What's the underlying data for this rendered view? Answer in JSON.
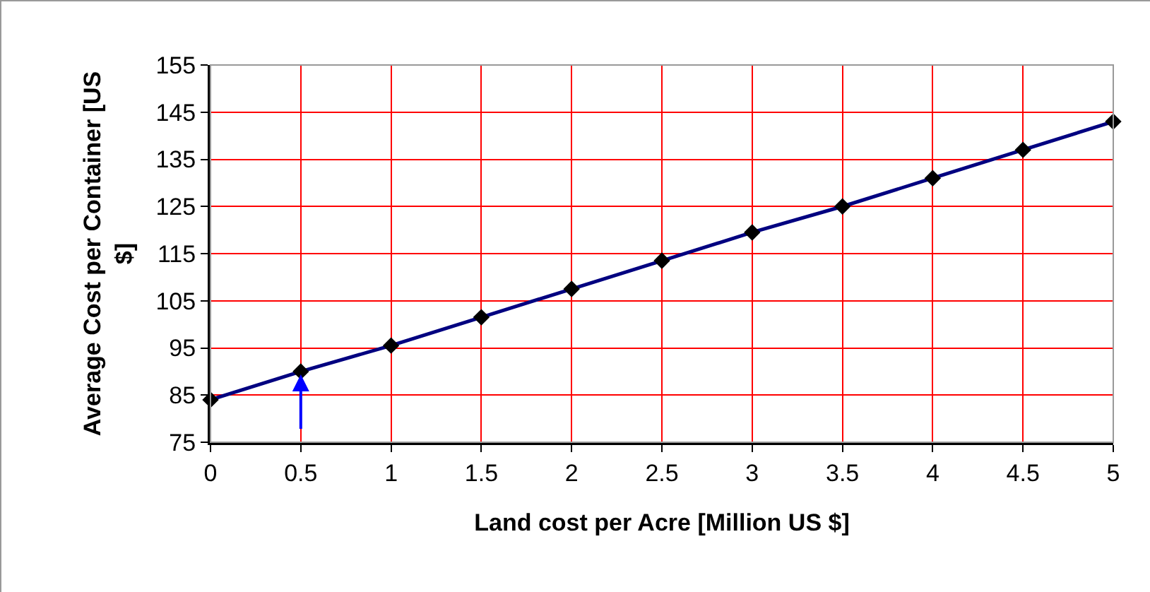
{
  "chart_data": {
    "type": "line",
    "xlabel": "Land cost per Acre [Million US $]",
    "ylabel": "Average Cost per Container [US $]",
    "x": [
      0,
      0.5,
      1,
      1.5,
      2,
      2.5,
      3,
      3.5,
      4,
      4.5,
      5
    ],
    "series": [
      {
        "color": "#000080",
        "values": [
          84,
          90,
          95.5,
          101.5,
          107.5,
          113.5,
          119.5,
          125,
          131,
          137,
          143
        ]
      }
    ],
    "xlim": [
      0,
      5
    ],
    "xticks": [
      0,
      0.5,
      1,
      1.5,
      2,
      2.5,
      3,
      3.5,
      4,
      4.5,
      5
    ],
    "ylim": [
      75,
      155
    ],
    "yticks": [
      75,
      85,
      95,
      105,
      115,
      125,
      135,
      145,
      155
    ],
    "grid": true,
    "marker": "diamond",
    "line_style": "solid"
  }
}
